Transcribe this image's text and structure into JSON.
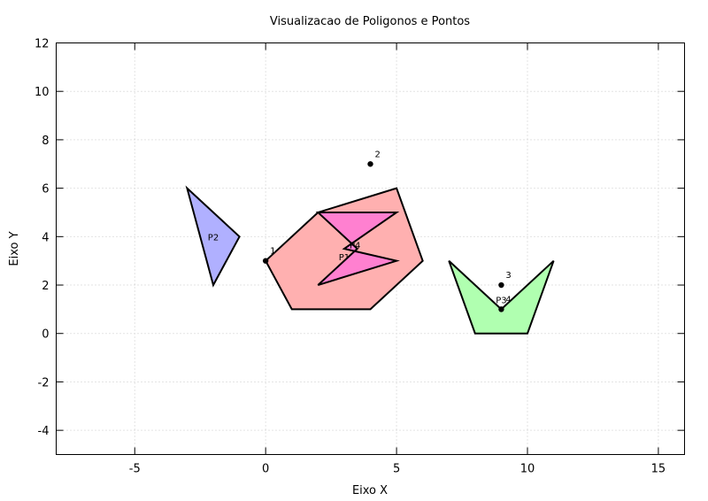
{
  "chart_data": {
    "type": "scatter",
    "title": "Visualizacao de Poligonos e Pontos",
    "xlabel": "Eixo X",
    "ylabel": "Eixo Y",
    "xlim": [
      -8,
      16
    ],
    "ylim": [
      -5,
      12
    ],
    "xticks": [
      -5,
      0,
      5,
      10,
      15
    ],
    "yticks": [
      -4,
      -2,
      0,
      2,
      4,
      6,
      8,
      10,
      12
    ],
    "grid": true,
    "polygons": [
      {
        "label": "P1",
        "fill": "#ffb0b0",
        "vertices": [
          [
            0,
            3
          ],
          [
            2,
            5
          ],
          [
            5,
            6
          ],
          [
            6,
            3
          ],
          [
            4,
            1
          ],
          [
            1,
            1
          ]
        ]
      },
      {
        "label": "P2",
        "fill": "#b0b0ff",
        "vertices": [
          [
            -3,
            6
          ],
          [
            -1,
            4
          ],
          [
            -2,
            2
          ]
        ]
      },
      {
        "label": "P3",
        "fill": "#b0ffb0",
        "vertices": [
          [
            7,
            3
          ],
          [
            9,
            1
          ],
          [
            11,
            3
          ],
          [
            10,
            0
          ],
          [
            8,
            0
          ]
        ]
      },
      {
        "label": "P4",
        "fill": "#ff80d0",
        "vertices": [
          [
            2,
            5
          ],
          [
            5,
            5
          ],
          [
            3,
            3.5
          ],
          [
            5,
            3
          ],
          [
            2,
            2
          ],
          [
            3.5,
            3.5
          ]
        ]
      }
    ],
    "points": [
      {
        "label": "1",
        "x": 0,
        "y": 3
      },
      {
        "label": "2",
        "x": 4,
        "y": 7
      },
      {
        "label": "3",
        "x": 9,
        "y": 2
      },
      {
        "label": "4",
        "x": 9,
        "y": 1
      }
    ]
  }
}
